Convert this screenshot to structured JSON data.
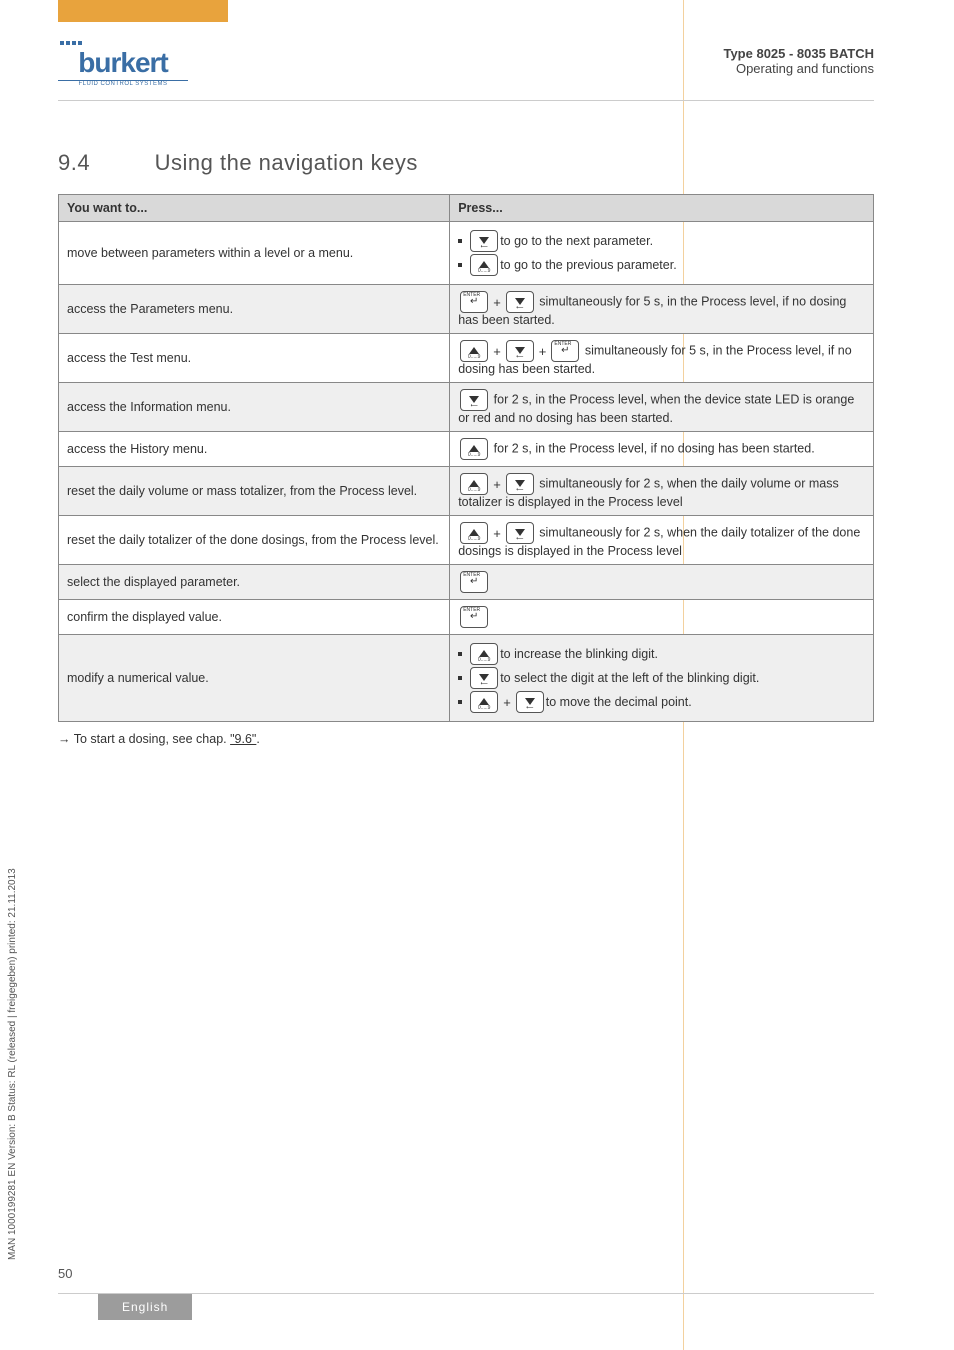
{
  "header": {
    "logo": "burkert",
    "logo_subtitle": "FLUID CONTROL SYSTEMS",
    "doc_title": "Type 8025 - 8035 BATCH",
    "doc_subtitle": "Operating and functions"
  },
  "sidebar": "MAN 1000199281 EN Version: B Status: RL (released | freigegeben) printed: 21.11.2013",
  "section": {
    "number": "9.4",
    "title": "Using the navigation keys"
  },
  "table": {
    "headers": [
      "You want to...",
      "Press..."
    ],
    "rows": [
      {
        "shaded": false,
        "want": "move between parameters within a level or a menu.",
        "press_items": [
          {
            "keys": [
              "down"
            ],
            "text": "to go to the next parameter."
          },
          {
            "keys": [
              "up"
            ],
            "text": "to go to the previous parameter."
          }
        ]
      },
      {
        "shaded": true,
        "want": "access the Parameters menu.",
        "press_text_pre": "",
        "press_keys": [
          "enter",
          "plus",
          "down"
        ],
        "press_text": "simultaneously for 5 s, in the Process level, if no dosing has been started."
      },
      {
        "shaded": false,
        "want": "access the Test menu.",
        "press_keys": [
          "up",
          "plus",
          "down",
          "plus",
          "enter"
        ],
        "press_text": "simultaneously for 5 s, in the Process level, if no dosing has been started."
      },
      {
        "shaded": true,
        "want": "access the Information menu.",
        "press_keys": [
          "down"
        ],
        "press_text": "for 2 s, in the Process level, when the device state LED is orange or red and no dosing has been started."
      },
      {
        "shaded": false,
        "want": "access the History menu.",
        "press_keys": [
          "up"
        ],
        "press_text": "for 2 s, in the Process level, if no dosing has been started."
      },
      {
        "shaded": true,
        "want": "reset the daily volume or mass totalizer, from the Process level.",
        "press_keys": [
          "up",
          "plus",
          "down"
        ],
        "press_text": "simultaneously for 2 s, when the daily volume or mass totalizer is displayed in the Process level"
      },
      {
        "shaded": false,
        "want": "reset the daily totalizer of the done dosings, from the Process level.",
        "press_keys": [
          "up",
          "plus",
          "down"
        ],
        "press_text": "simultaneously for 2 s, when the daily totalizer of the done dosings is displayed in the Process level"
      },
      {
        "shaded": true,
        "want": "select the displayed parameter.",
        "press_keys": [
          "enter"
        ],
        "press_text": ""
      },
      {
        "shaded": false,
        "want": "confirm the displayed value.",
        "press_keys": [
          "enter"
        ],
        "press_text": ""
      },
      {
        "shaded": true,
        "want": "modify a numerical value.",
        "press_items": [
          {
            "keys": [
              "up"
            ],
            "text": "to increase the blinking digit."
          },
          {
            "keys": [
              "down"
            ],
            "text": "to select the digit at the left of the blinking digit."
          },
          {
            "keys": [
              "up",
              "plus",
              "down"
            ],
            "text": "to move the decimal point."
          }
        ]
      }
    ]
  },
  "note": {
    "prefix": "→ To start a dosing, see chap. ",
    "link": "\"9.6\"",
    "suffix": "."
  },
  "footer": {
    "page": "50",
    "lang": "English"
  }
}
